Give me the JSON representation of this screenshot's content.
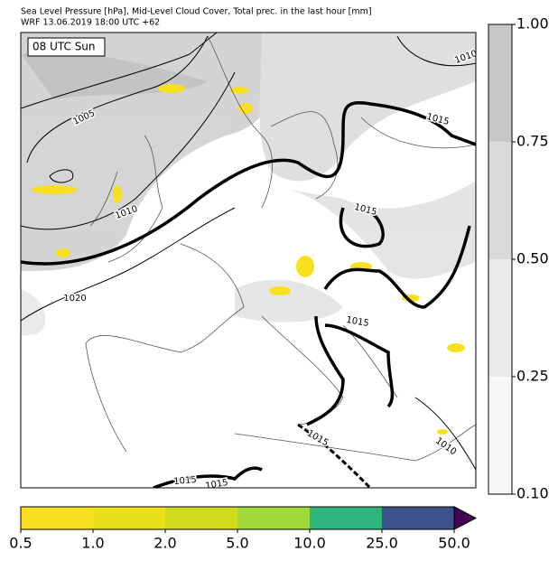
{
  "header": {
    "title": "Sea Level Pressure [hPa], Mid-Level Cloud Cover, Total prec. in the last hour [mm]",
    "subtitle": "WRF 13.06.2019 18:00 UTC +62"
  },
  "map": {
    "time_label": "08 UTC Sun",
    "isobar_labels": [
      "1010",
      "1015",
      "1005",
      "1010",
      "1015",
      "1020",
      "1015",
      "1015",
      "1010",
      "1015",
      "1015"
    ]
  },
  "cloud_colorbar": {
    "colors": [
      "#f7f7f7",
      "#eaeaea",
      "#d9d9d9",
      "#c6c6c6"
    ],
    "ticks": [
      {
        "value": 0.1,
        "label": "0.10"
      },
      {
        "value": 0.25,
        "label": "0.25"
      },
      {
        "value": 0.5,
        "label": "0.50"
      },
      {
        "value": 0.75,
        "label": "0.75"
      },
      {
        "value": 1,
        "label": "1.00"
      }
    ]
  },
  "precip_colorbar": {
    "colors": [
      "#f9e01f",
      "#ebe01c",
      "#cfdc1d",
      "#a0da39",
      "#2fb47c",
      "#3b528b",
      "#440154"
    ],
    "ticks": [
      {
        "value": 0.5,
        "label": "0.5"
      },
      {
        "value": 1,
        "label": "1.0"
      },
      {
        "value": 2,
        "label": "2.0"
      },
      {
        "value": 5,
        "label": "5.0"
      },
      {
        "value": 10,
        "label": "10.0"
      },
      {
        "value": 25,
        "label": "25.0"
      },
      {
        "value": 50,
        "label": "50.0"
      }
    ]
  }
}
